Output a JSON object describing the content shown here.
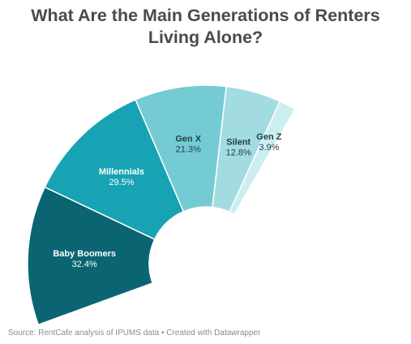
{
  "chart_data": {
    "type": "pie",
    "title": "What Are the Main Generations of Renters Living Alone?",
    "source": "Source: RentCafe analysis of IPUMS data • Created with Datawrapper",
    "categories": [
      "Baby Boomers",
      "Millennials",
      "Gen X",
      "Silent",
      "Gen Z"
    ],
    "values": [
      32.4,
      29.5,
      21.3,
      12.8,
      3.9
    ],
    "value_labels": [
      "32.4%",
      "29.5%",
      "21.3%",
      "12.8%",
      "3.9%"
    ],
    "colors": [
      "#0b6472",
      "#17a3b4",
      "#74cbd3",
      "#a2dbe1",
      "#cbeef1"
    ],
    "label_colors": [
      "#ffffff",
      "#ffffff",
      "#1f3f44",
      "#1f3f44",
      "#1f3f44"
    ],
    "layout": "semi-donut"
  }
}
